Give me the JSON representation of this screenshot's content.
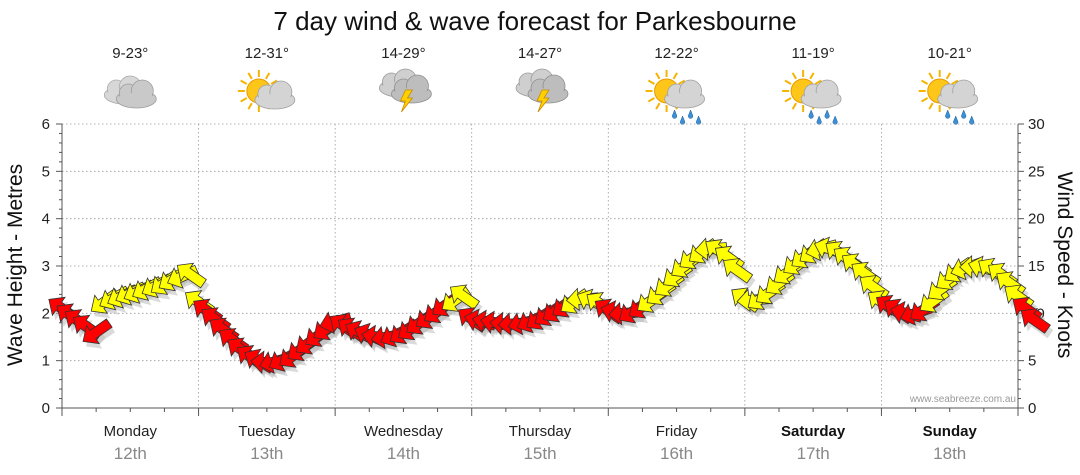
{
  "title": "7 day wind & wave forecast for Parkesbourne",
  "watermark": "www.seabreeze.com.au",
  "colors": {
    "light_wind": "#ffff00",
    "strong_wind": "#ff0000",
    "shadow": "#bbbbbb"
  },
  "chart_data": {
    "type": "line",
    "y_left": {
      "label": "Wave Height - Metres",
      "range": [
        0,
        6
      ],
      "ticks": [
        "0",
        "1",
        "2",
        "3",
        "4",
        "5",
        "6"
      ]
    },
    "y_right": {
      "label": "Wind Speed - Knots",
      "range": [
        0,
        30
      ],
      "ticks": [
        "0",
        "5",
        "10",
        "15",
        "20",
        "25",
        "30"
      ]
    },
    "days": [
      {
        "name": "Monday",
        "date": "12th",
        "temp": "9-23°",
        "weather": "cloudy-icon",
        "bold": false
      },
      {
        "name": "Tuesday",
        "date": "13th",
        "temp": "12-31°",
        "weather": "partly-cloudy-sun-icon",
        "bold": false
      },
      {
        "name": "Wednesday",
        "date": "14th",
        "temp": "14-29°",
        "weather": "thunderstorm-icon",
        "bold": false
      },
      {
        "name": "Thursday",
        "date": "15th",
        "temp": "14-27°",
        "weather": "thunderstorm-icon",
        "bold": false
      },
      {
        "name": "Friday",
        "date": "16th",
        "temp": "12-22°",
        "weather": "sun-cloud-rain-icon",
        "bold": false
      },
      {
        "name": "Saturday",
        "date": "17th",
        "temp": "11-19°",
        "weather": "sun-cloud-rain-icon",
        "bold": true
      },
      {
        "name": "Sunday",
        "date": "18th",
        "temp": "10-21°",
        "weather": "sun-cloud-rain-icon",
        "bold": true
      }
    ],
    "legend": "none",
    "series": [
      {
        "name": "Wind Speed",
        "unit": "knots",
        "x_unit": "days",
        "points": [
          [
            0.0,
            10.5
          ],
          [
            0.06,
            9.8
          ],
          [
            0.12,
            9.2
          ],
          [
            0.18,
            8.6
          ],
          [
            0.25,
            8.0
          ],
          [
            0.31,
            11.2
          ],
          [
            0.38,
            11.6
          ],
          [
            0.44,
            11.8
          ],
          [
            0.5,
            12.1
          ],
          [
            0.56,
            12.3
          ],
          [
            0.62,
            12.6
          ],
          [
            0.69,
            12.9
          ],
          [
            0.75,
            13.2
          ],
          [
            0.81,
            13.6
          ],
          [
            0.88,
            13.9
          ],
          [
            0.94,
            14.1
          ],
          [
            1.0,
            11.2
          ],
          [
            1.06,
            10.3
          ],
          [
            1.12,
            9.4
          ],
          [
            1.18,
            8.3
          ],
          [
            1.25,
            7.2
          ],
          [
            1.31,
            6.2
          ],
          [
            1.38,
            5.4
          ],
          [
            1.44,
            5.0
          ],
          [
            1.5,
            4.8
          ],
          [
            1.56,
            4.9
          ],
          [
            1.62,
            5.1
          ],
          [
            1.69,
            5.5
          ],
          [
            1.75,
            6.2
          ],
          [
            1.81,
            6.9
          ],
          [
            1.88,
            7.7
          ],
          [
            1.94,
            8.4
          ],
          [
            2.0,
            9.1
          ],
          [
            2.06,
            8.7
          ],
          [
            2.12,
            8.3
          ],
          [
            2.18,
            8.0
          ],
          [
            2.25,
            7.7
          ],
          [
            2.31,
            7.5
          ],
          [
            2.38,
            7.5
          ],
          [
            2.44,
            7.7
          ],
          [
            2.5,
            8.0
          ],
          [
            2.56,
            8.4
          ],
          [
            2.62,
            9.0
          ],
          [
            2.69,
            9.6
          ],
          [
            2.75,
            10.2
          ],
          [
            2.81,
            10.9
          ],
          [
            2.88,
            11.4
          ],
          [
            2.94,
            11.8
          ],
          [
            3.0,
            9.4
          ],
          [
            3.06,
            9.2
          ],
          [
            3.12,
            9.1
          ],
          [
            3.18,
            9.0
          ],
          [
            3.25,
            8.9
          ],
          [
            3.31,
            8.9
          ],
          [
            3.38,
            9.0
          ],
          [
            3.44,
            9.2
          ],
          [
            3.5,
            9.5
          ],
          [
            3.56,
            9.9
          ],
          [
            3.62,
            10.3
          ],
          [
            3.69,
            10.8
          ],
          [
            3.75,
            11.2
          ],
          [
            3.81,
            11.5
          ],
          [
            3.88,
            11.3
          ],
          [
            3.94,
            11.0
          ],
          [
            4.0,
            10.3
          ],
          [
            4.06,
            10.1
          ],
          [
            4.12,
            10.0
          ],
          [
            4.18,
            10.2
          ],
          [
            4.25,
            10.7
          ],
          [
            4.31,
            11.3
          ],
          [
            4.38,
            12.1
          ],
          [
            4.44,
            13.0
          ],
          [
            4.5,
            14.0
          ],
          [
            4.56,
            15.0
          ],
          [
            4.62,
            15.9
          ],
          [
            4.69,
            16.5
          ],
          [
            4.75,
            16.8
          ],
          [
            4.81,
            16.6
          ],
          [
            4.88,
            15.9
          ],
          [
            4.94,
            14.6
          ],
          [
            5.0,
            11.5
          ],
          [
            5.06,
            11.4
          ],
          [
            5.12,
            11.6
          ],
          [
            5.18,
            12.2
          ],
          [
            5.25,
            13.2
          ],
          [
            5.31,
            14.3
          ],
          [
            5.38,
            15.3
          ],
          [
            5.44,
            16.0
          ],
          [
            5.5,
            16.5
          ],
          [
            5.56,
            16.8
          ],
          [
            5.62,
            16.8
          ],
          [
            5.69,
            16.4
          ],
          [
            5.75,
            15.8
          ],
          [
            5.81,
            15.1
          ],
          [
            5.88,
            14.2
          ],
          [
            5.94,
            12.8
          ],
          [
            6.0,
            11.2
          ],
          [
            6.06,
            10.7
          ],
          [
            6.12,
            10.3
          ],
          [
            6.18,
            10.0
          ],
          [
            6.25,
            10.0
          ],
          [
            6.31,
            10.4
          ],
          [
            6.38,
            11.3
          ],
          [
            6.44,
            12.6
          ],
          [
            6.5,
            13.7
          ],
          [
            6.56,
            14.5
          ],
          [
            6.62,
            14.8
          ],
          [
            6.69,
            14.9
          ],
          [
            6.75,
            14.8
          ],
          [
            6.81,
            14.6
          ],
          [
            6.88,
            14.1
          ],
          [
            6.94,
            13.2
          ],
          [
            7.0,
            11.8
          ],
          [
            7.06,
            10.5
          ],
          [
            7.12,
            9.3
          ]
        ]
      }
    ]
  }
}
